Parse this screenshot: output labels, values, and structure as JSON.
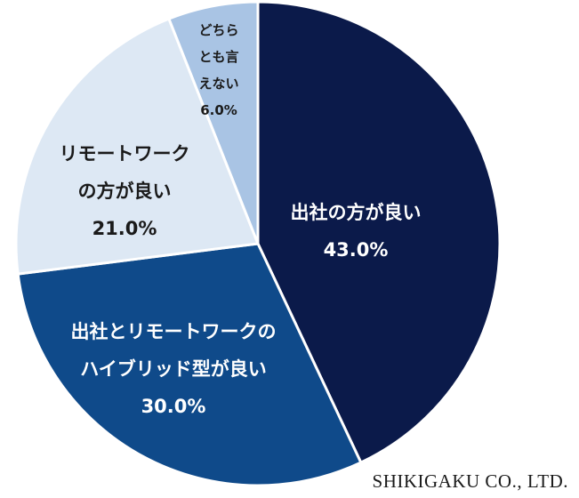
{
  "chart_data": {
    "type": "pie",
    "slices": [
      {
        "label_lines": [
          "出社の方が良い"
        ],
        "value": 43.0,
        "value_text": "43.0%",
        "color": "#0b1a4a",
        "text_color": "#ffffff"
      },
      {
        "label_lines": [
          "出社とリモートワークの",
          "ハイブリッド型が良い"
        ],
        "value": 30.0,
        "value_text": "30.0%",
        "color": "#0f4a8a",
        "text_color": "#ffffff"
      },
      {
        "label_lines": [
          "リモートワーク",
          "の方が良い"
        ],
        "value": 21.0,
        "value_text": "21.0%",
        "color": "#dde8f4",
        "text_color": "#1a1a1a"
      },
      {
        "label_lines": [
          "どちら",
          "とも言",
          "えない"
        ],
        "value": 6.0,
        "value_text": "6.0%",
        "color": "#a9c4e4",
        "text_color": "#1a1a1a"
      }
    ],
    "start_angle": "12 o'clock",
    "direction": "clockwise"
  },
  "credit": "SHIKIGAKU CO., LTD."
}
